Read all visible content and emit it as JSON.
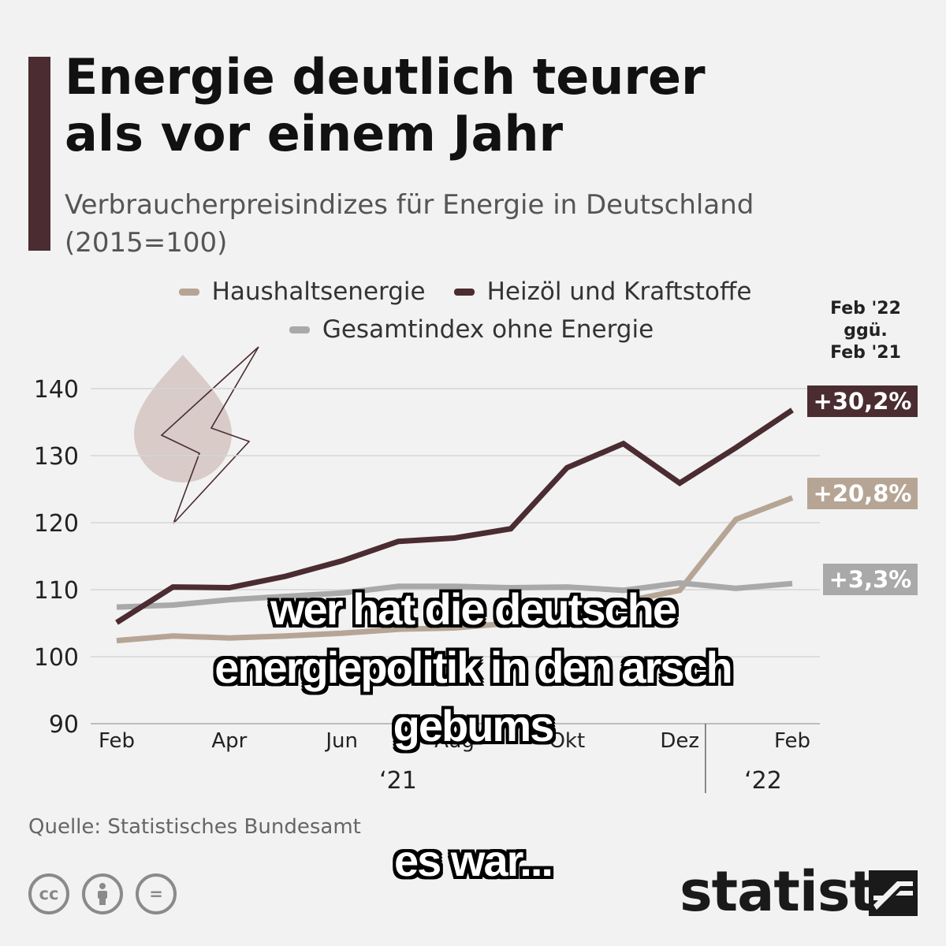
{
  "header": {
    "title_line1": "Energie deutlich teurer",
    "title_line2": "als vor einem Jahr",
    "subtitle_line1": "Verbraucherpreisindizes für Energie in Deutschland",
    "subtitle_line2": "(2015=100)",
    "accent_color": "#4a2c31"
  },
  "comparison": {
    "line1": "Feb '22",
    "line2": "ggü.",
    "line3": "Feb '21",
    "badges": [
      {
        "label": "+30,2%",
        "color": "#4a2c31"
      },
      {
        "label": "+20,8%",
        "color": "#b6a595"
      },
      {
        "label": "+3,3%",
        "color": "#a9a9a9"
      }
    ]
  },
  "chart_data": {
    "type": "line",
    "x": [
      "Feb 2021",
      "Mär 2021",
      "Apr 2021",
      "Mai 2021",
      "Jun 2021",
      "Jul 2021",
      "Aug 2021",
      "Sep 2021",
      "Okt 2021",
      "Nov 2021",
      "Dez 2021",
      "Jan 2022",
      "Feb 2022"
    ],
    "series": [
      {
        "name": "Haushaltsenergie",
        "color": "#b6a595",
        "values": [
          102.4,
          103.1,
          102.8,
          103.1,
          103.5,
          104.1,
          104.3,
          105.0,
          105.3,
          108.2,
          109.9,
          120.5,
          123.7
        ]
      },
      {
        "name": "Heizöl und Kraftstoffe",
        "color": "#4a2c31",
        "values": [
          105.1,
          110.4,
          110.3,
          112.0,
          114.3,
          117.2,
          117.7,
          119.1,
          128.2,
          131.8,
          125.9,
          131.2,
          136.8
        ]
      },
      {
        "name": "Gesamtindex ohne Energie",
        "color": "#a9a9a9",
        "values": [
          107.4,
          107.7,
          108.5,
          109.0,
          109.5,
          110.5,
          110.5,
          110.3,
          110.4,
          109.9,
          111.0,
          110.2,
          110.9
        ]
      }
    ],
    "ylim": [
      90,
      145
    ],
    "yticks": [
      90,
      100,
      110,
      120,
      130,
      140
    ],
    "xtick_labels": [
      "Feb",
      "Apr",
      "Jun",
      "Aug",
      "Okt",
      "Dez",
      "Feb"
    ],
    "year_labels": [
      "‘21",
      "‘22"
    ],
    "grid": true,
    "legend_position": "top"
  },
  "overlay": {
    "caption_line1": "wer hat die deutsche",
    "caption_line2": "energiepolitik in den arsch",
    "caption_line3": "gebums",
    "caption_bottom": "es war..."
  },
  "footer": {
    "source": "Quelle: Statistisches Bundesamt",
    "license_icons": [
      "cc-icon",
      "attribution-icon",
      "no-derivatives-icon"
    ],
    "cc_label": "cc",
    "nd_label": "=",
    "brand": "statista"
  }
}
